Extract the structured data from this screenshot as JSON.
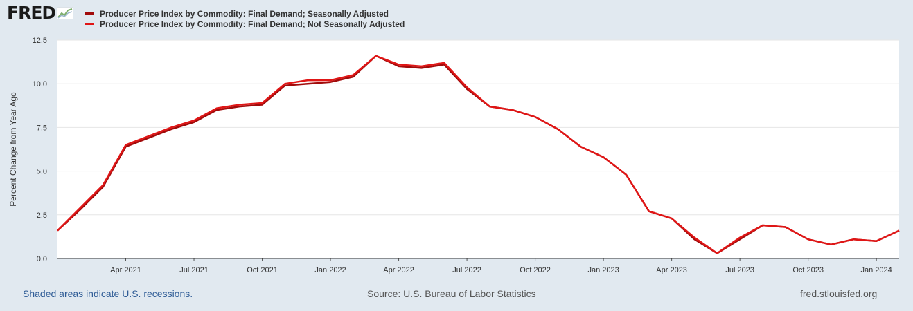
{
  "logo": {
    "text": "FRED"
  },
  "legend": {
    "items": [
      {
        "label": "Producer Price Index by Commodity: Final Demand; Seasonally Adjusted",
        "color": "#a10b0b"
      },
      {
        "label": "Producer Price Index by Commodity: Final Demand; Not Seasonally Adjusted",
        "color": "#e01616"
      }
    ]
  },
  "chart_data": {
    "type": "line",
    "title": "",
    "xlabel": "",
    "ylabel": "Percent Change from Year Ago",
    "ylim": [
      0,
      12.5
    ],
    "yticks": [
      0.0,
      2.5,
      5.0,
      7.5,
      10.0,
      12.5
    ],
    "ytick_labels": [
      "0.0",
      "2.5",
      "5.0",
      "7.5",
      "10.0",
      "12.5"
    ],
    "xticks": [
      {
        "label": "Apr 2021",
        "index": 3
      },
      {
        "label": "Jul 2021",
        "index": 6
      },
      {
        "label": "Oct 2021",
        "index": 9
      },
      {
        "label": "Jan 2022",
        "index": 12
      },
      {
        "label": "Apr 2022",
        "index": 15
      },
      {
        "label": "Jul 2022",
        "index": 18
      },
      {
        "label": "Oct 2022",
        "index": 21
      },
      {
        "label": "Jan 2023",
        "index": 24
      },
      {
        "label": "Apr 2023",
        "index": 27
      },
      {
        "label": "Jul 2023",
        "index": 30
      },
      {
        "label": "Oct 2023",
        "index": 33
      },
      {
        "label": "Jan 2024",
        "index": 36
      }
    ],
    "x": [
      "2021-01",
      "2021-02",
      "2021-03",
      "2021-04",
      "2021-05",
      "2021-06",
      "2021-07",
      "2021-08",
      "2021-09",
      "2021-10",
      "2021-11",
      "2021-12",
      "2022-01",
      "2022-02",
      "2022-03",
      "2022-04",
      "2022-05",
      "2022-06",
      "2022-07",
      "2022-08",
      "2022-09",
      "2022-10",
      "2022-11",
      "2022-12",
      "2023-01",
      "2023-02",
      "2023-03",
      "2023-04",
      "2023-05",
      "2023-06",
      "2023-07",
      "2023-08",
      "2023-09",
      "2023-10",
      "2023-11",
      "2023-12",
      "2024-01",
      "2024-02"
    ],
    "series": [
      {
        "name": "Producer Price Index by Commodity: Final Demand; Seasonally Adjusted",
        "color": "#a10b0b",
        "values": [
          1.6,
          2.8,
          4.1,
          6.4,
          6.9,
          7.4,
          7.8,
          8.5,
          8.7,
          8.8,
          9.9,
          10.0,
          10.1,
          10.4,
          11.6,
          11.0,
          10.9,
          11.1,
          9.7,
          8.7,
          8.5,
          8.1,
          7.4,
          6.4,
          5.8,
          4.8,
          2.7,
          2.3,
          1.1,
          0.3,
          1.1,
          1.9,
          1.8,
          1.1,
          0.8,
          1.1,
          1.0,
          1.6
        ]
      },
      {
        "name": "Producer Price Index by Commodity: Final Demand; Not Seasonally Adjusted",
        "color": "#e01616",
        "values": [
          1.6,
          2.9,
          4.2,
          6.5,
          7.0,
          7.5,
          7.9,
          8.6,
          8.8,
          8.9,
          10.0,
          10.2,
          10.2,
          10.5,
          11.6,
          11.1,
          11.0,
          11.2,
          9.8,
          8.7,
          8.5,
          8.1,
          7.4,
          6.4,
          5.8,
          4.8,
          2.7,
          2.3,
          1.2,
          0.3,
          1.2,
          1.9,
          1.8,
          1.1,
          0.8,
          1.1,
          1.0,
          1.6
        ]
      }
    ]
  },
  "footer": {
    "recessions": "Shaded areas indicate U.S. recessions.",
    "source": "Source: U.S. Bureau of Labor Statistics",
    "site": "fred.stlouisfed.org"
  }
}
